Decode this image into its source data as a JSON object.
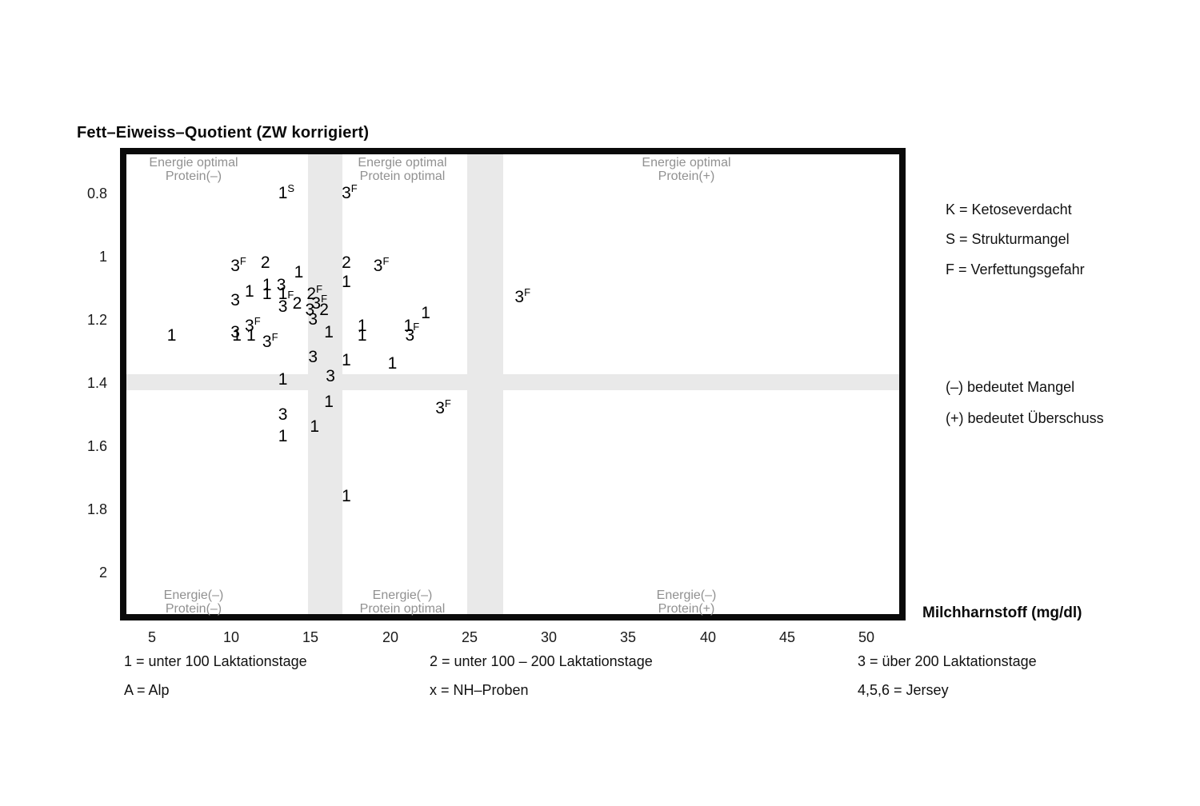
{
  "title": "Fett–Eiweiss–Quotient (ZW korrigiert)",
  "x_axis": {
    "label": "Milchharnstoff (mg/dl)",
    "ticks": [
      5,
      10,
      15,
      20,
      25,
      30,
      35,
      40,
      45,
      50
    ]
  },
  "y_axis": {
    "tick_labels": [
      "0.8",
      "1",
      "1.2",
      "1.4",
      "1.6",
      "1.8",
      "2"
    ],
    "tick_values": [
      0.8,
      1,
      1.2,
      1.4,
      1.6,
      1.8,
      2
    ]
  },
  "legend_right": {
    "codes": [
      "K = Ketoseverdacht",
      "S = Strukturmangel",
      "F = Verfettungsgefahr"
    ],
    "notes": [
      "(–) bedeutet Mangel",
      "(+) bedeutet Überschuss"
    ]
  },
  "legend_bottom": {
    "row1": [
      "1 = unter 100 Laktationstage",
      "2 = unter 100 – 200 Laktationstage",
      "3 = über 200 Laktationstage"
    ],
    "row2": [
      "A = Alp",
      "x = NH–Proben",
      "4,5,6 = Jersey"
    ]
  },
  "chart_data": {
    "type": "scatter",
    "title": "Fett–Eiweiss–Quotient (ZW korrigiert)",
    "xlabel": "Milchharnstoff (mg/dl)",
    "ylabel": "Fett–Eiweiss–Quotient (ZW korrigiert)",
    "xlim": [
      3.4,
      52
    ],
    "ylim": [
      2.13,
      0.68
    ],
    "y_axis_reversed": true,
    "grid": false,
    "marker_meaning": {
      "1": "unter 100 Laktationstage",
      "2": "unter 100 – 200 Laktationstage",
      "3": "über 200 Laktationstage",
      "A": "Alp",
      "x": "NH–Proben",
      "4,5,6": "Jersey"
    },
    "suffix_meaning": {
      "K": "Ketoseverdacht",
      "S": "Strukturmangel",
      "F": "Verfettungsgefahr"
    },
    "shaded_bands": {
      "color": "#e9e9e9",
      "vertical_x_ranges": [
        [
          14.85,
          17.0
        ],
        [
          24.83,
          27.1
        ]
      ],
      "horizontal_y_ranges": [
        [
          1.372,
          1.423
        ]
      ]
    },
    "region_labels": {
      "color": "#919191",
      "top": [
        {
          "lines": [
            "Energie optimal",
            "Protein(–)"
          ]
        },
        {
          "lines": [
            "Energie optimal",
            "Protein optimal"
          ]
        },
        {
          "lines": [
            "Energie optimal",
            "Protein(+)"
          ]
        }
      ],
      "bottom": [
        {
          "lines": [
            "Energie(–)",
            "Protein(–)"
          ]
        },
        {
          "lines": [
            "Energie(–)",
            "Protein optimal"
          ]
        },
        {
          "lines": [
            "Energie(–)",
            "Protein(+)"
          ]
        }
      ]
    },
    "points": [
      {
        "x": 13.2,
        "y": 0.8,
        "m": "1",
        "s": "S"
      },
      {
        "x": 17.2,
        "y": 0.8,
        "m": "3",
        "s": "F"
      },
      {
        "x": 10.2,
        "y": 1.03,
        "m": "3",
        "s": "F"
      },
      {
        "x": 12.1,
        "y": 1.02,
        "m": "2"
      },
      {
        "x": 14.2,
        "y": 1.05,
        "m": "1"
      },
      {
        "x": 17.2,
        "y": 1.02,
        "m": "2"
      },
      {
        "x": 19.2,
        "y": 1.03,
        "m": "3",
        "s": "F"
      },
      {
        "x": 17.2,
        "y": 1.08,
        "m": "1"
      },
      {
        "x": 11.1,
        "y": 1.11,
        "m": "1"
      },
      {
        "x": 12.2,
        "y": 1.09,
        "m": "1"
      },
      {
        "x": 12.2,
        "y": 1.12,
        "m": "1"
      },
      {
        "x": 13.1,
        "y": 1.09,
        "m": "3"
      },
      {
        "x": 13.2,
        "y": 1.12,
        "m": "1",
        "s": "F",
        "inline": true
      },
      {
        "x": 10.2,
        "y": 1.14,
        "m": "3"
      },
      {
        "x": 15.0,
        "y": 1.12,
        "m": "2",
        "s": "F"
      },
      {
        "x": 15.3,
        "y": 1.15,
        "m": "3",
        "s": "F"
      },
      {
        "x": 14.9,
        "y": 1.17,
        "m": "3"
      },
      {
        "x": 15.8,
        "y": 1.17,
        "m": "2"
      },
      {
        "x": 15.1,
        "y": 1.2,
        "m": "3"
      },
      {
        "x": 14.1,
        "y": 1.15,
        "m": "2"
      },
      {
        "x": 13.2,
        "y": 1.16,
        "m": "3"
      },
      {
        "x": 22.2,
        "y": 1.18,
        "m": "1"
      },
      {
        "x": 11.1,
        "y": 1.22,
        "m": "3",
        "s": "F"
      },
      {
        "x": 10.2,
        "y": 1.24,
        "m": "3"
      },
      {
        "x": 10.3,
        "y": 1.25,
        "m": "1"
      },
      {
        "x": 11.2,
        "y": 1.25,
        "m": "1"
      },
      {
        "x": 12.2,
        "y": 1.27,
        "m": "3",
        "s": "F"
      },
      {
        "x": 18.2,
        "y": 1.22,
        "m": "1"
      },
      {
        "x": 21.1,
        "y": 1.22,
        "m": "1",
        "s": "F",
        "inline": true
      },
      {
        "x": 18.2,
        "y": 1.25,
        "m": "1"
      },
      {
        "x": 21.2,
        "y": 1.25,
        "m": "3"
      },
      {
        "x": 6.2,
        "y": 1.25,
        "m": "1"
      },
      {
        "x": 16.1,
        "y": 1.24,
        "m": "1"
      },
      {
        "x": 15.1,
        "y": 1.32,
        "m": "3"
      },
      {
        "x": 17.2,
        "y": 1.33,
        "m": "1"
      },
      {
        "x": 20.1,
        "y": 1.34,
        "m": "1"
      },
      {
        "x": 13.2,
        "y": 1.39,
        "m": "1"
      },
      {
        "x": 16.2,
        "y": 1.38,
        "m": "3"
      },
      {
        "x": 16.1,
        "y": 1.46,
        "m": "1"
      },
      {
        "x": 23.1,
        "y": 1.48,
        "m": "3",
        "s": "F"
      },
      {
        "x": 13.2,
        "y": 1.5,
        "m": "3"
      },
      {
        "x": 15.2,
        "y": 1.54,
        "m": "1"
      },
      {
        "x": 13.2,
        "y": 1.57,
        "m": "1"
      },
      {
        "x": 17.2,
        "y": 1.76,
        "m": "1"
      },
      {
        "x": 28.1,
        "y": 1.13,
        "m": "3",
        "s": "F"
      }
    ]
  }
}
